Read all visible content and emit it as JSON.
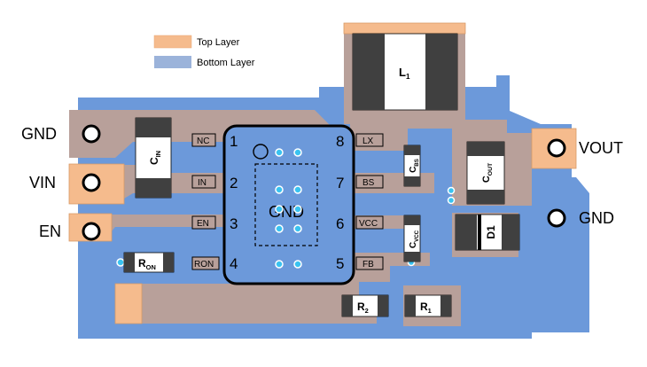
{
  "legend": {
    "top_layer": "Top Layer",
    "bottom_layer": "Bottom Layer"
  },
  "colors": {
    "top_layer": "#f5bb8d",
    "top_layer_border": "#d89a66",
    "bottom_layer": "#6c99da",
    "bottom_layer_legend": "#9bb3da",
    "overlap": "#b8a09a",
    "component_dark": "#404040",
    "via": "#39c3f0",
    "outline": "#000000"
  },
  "connectors": {
    "gnd_left": "GND",
    "vin": "VIN",
    "en": "EN",
    "vout": "VOUT",
    "gnd_right": "GND"
  },
  "ic": {
    "center_label": "GND",
    "pins": [
      {
        "number": "1",
        "label": "NC"
      },
      {
        "number": "2",
        "label": "IN"
      },
      {
        "number": "3",
        "label": "EN"
      },
      {
        "number": "4",
        "label": "RON"
      },
      {
        "number": "8",
        "label": "LX"
      },
      {
        "number": "7",
        "label": "BS"
      },
      {
        "number": "6",
        "label": "VCC"
      },
      {
        "number": "5",
        "label": "FB"
      }
    ]
  },
  "components": {
    "cin": {
      "main": "C",
      "sub": "IN"
    },
    "l1": {
      "main": "L",
      "sub": "1"
    },
    "cbs": {
      "main": "C",
      "sub": "BS"
    },
    "cout": {
      "main": "C",
      "sub": "OUT"
    },
    "cvcc": {
      "main": "C",
      "sub": "VCC"
    },
    "d1": {
      "main": "D1"
    },
    "ron": {
      "main": "R",
      "sub": "ON"
    },
    "r2": {
      "main": "R",
      "sub": "2"
    },
    "r1": {
      "main": "R",
      "sub": "1"
    }
  }
}
